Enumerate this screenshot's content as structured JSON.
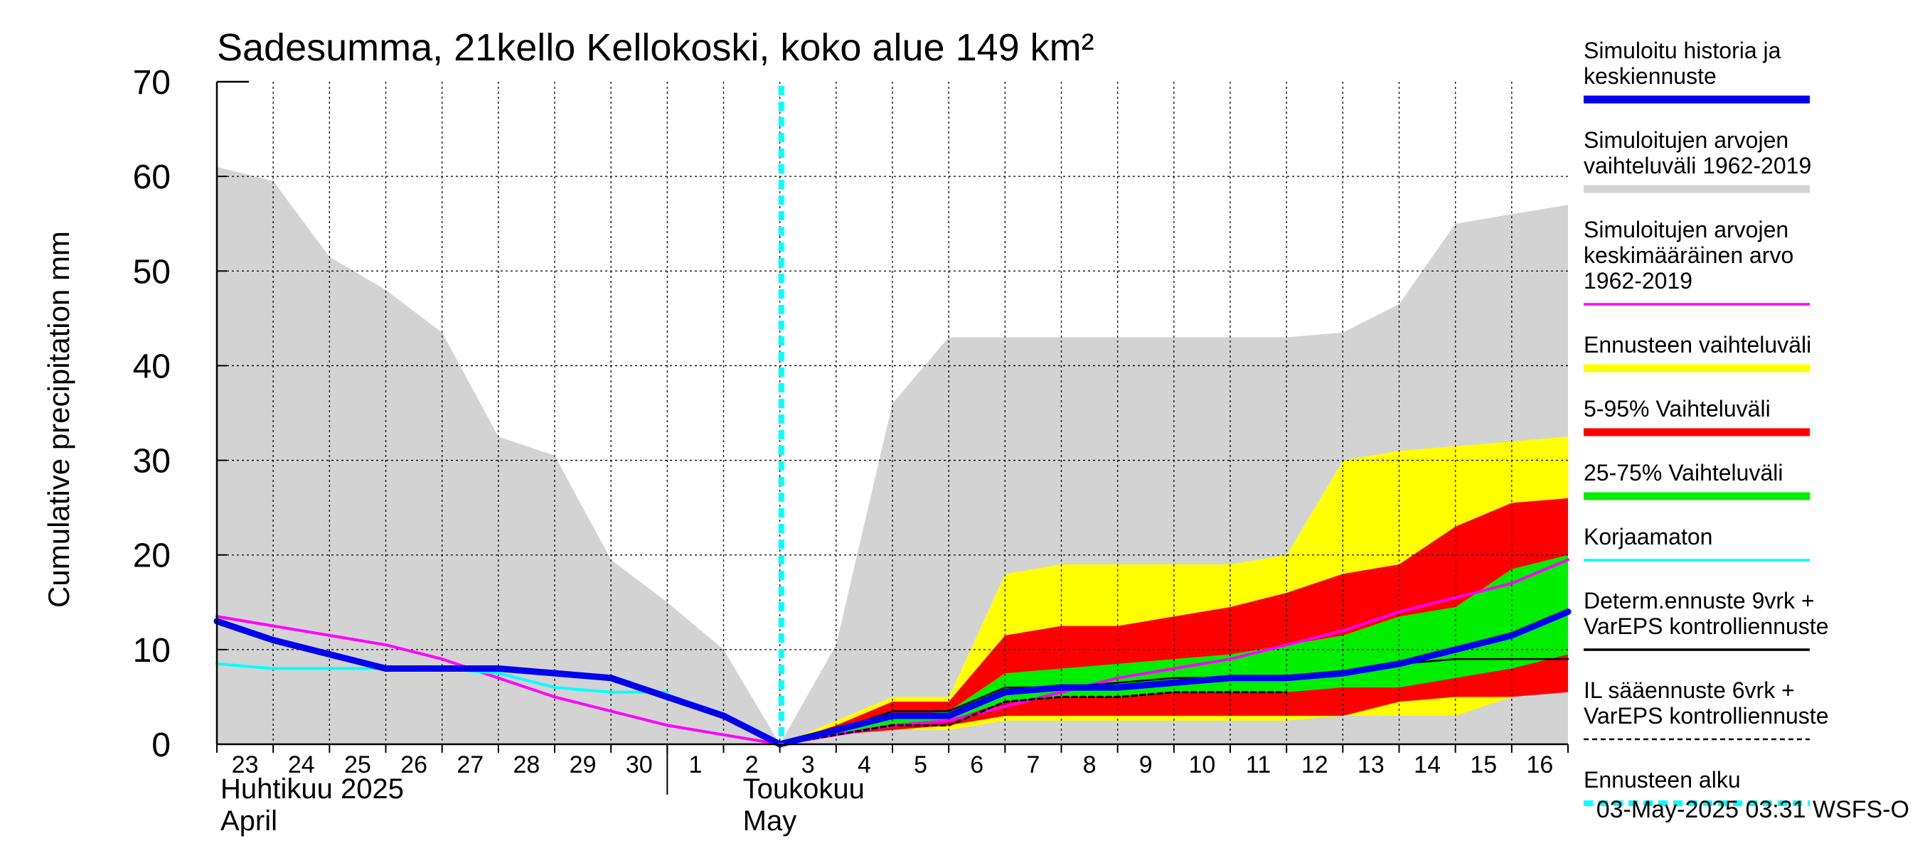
{
  "chart_data": {
    "type": "area",
    "title": "Sadesumma, 21kello Kellokoski, koko alue 149 km²",
    "ylabel": "Cumulative precipitation   mm",
    "ylim": [
      0,
      70
    ],
    "yticks": [
      0,
      10,
      20,
      30,
      40,
      50,
      60,
      70
    ],
    "grid": true,
    "legend_position": "right",
    "x_tick_labels": [
      "23",
      "24",
      "25",
      "26",
      "27",
      "28",
      "29",
      "30",
      "1",
      "2",
      "3",
      "4",
      "5",
      "6",
      "7",
      "8",
      "9",
      "10",
      "11",
      "12",
      "13",
      "14",
      "15",
      "16"
    ],
    "month_labels": [
      {
        "line1": "Huhtikuu  2025",
        "line2": "April"
      },
      {
        "line1": "Toukokuu",
        "line2": "May"
      }
    ],
    "forecast_start_index": 10,
    "series": [
      {
        "name": "Simuloitujen arvojen vaihteluväli 1962-2019",
        "color": "#d3d3d3",
        "upper": [
          61,
          59.5,
          51.5,
          48,
          43.5,
          32.5,
          30.5,
          19.5,
          15,
          10,
          0,
          10.5,
          36,
          43,
          43,
          43,
          43,
          43,
          43,
          43,
          43.5,
          46.5,
          55,
          56,
          57
        ],
        "lower": [
          0,
          0,
          0,
          0,
          0,
          0,
          0,
          0,
          0,
          0,
          0,
          0,
          0,
          0,
          0,
          0,
          0,
          0,
          0,
          0,
          0,
          0,
          0,
          0,
          0
        ]
      },
      {
        "name": "Ennusteen vaihteluväli",
        "color": "#ffff00",
        "upper": [
          null,
          null,
          null,
          null,
          null,
          null,
          null,
          null,
          null,
          null,
          0,
          2.5,
          5,
          5,
          18,
          19,
          19,
          19,
          19,
          20,
          30,
          31,
          31.5,
          32,
          32.5
        ],
        "lower": [
          null,
          null,
          null,
          null,
          null,
          null,
          null,
          null,
          null,
          null,
          0,
          1,
          1.5,
          1.5,
          2.5,
          2.5,
          2.5,
          2.5,
          2.5,
          2.5,
          3,
          3,
          3,
          5,
          5.5
        ]
      },
      {
        "name": "5-95% Vaihteluväli",
        "color": "#ff0000",
        "upper": [
          null,
          null,
          null,
          null,
          null,
          null,
          null,
          null,
          null,
          null,
          0,
          2,
          4.5,
          4.5,
          11.5,
          12.5,
          12.5,
          13.5,
          14.5,
          16,
          18,
          19,
          23,
          25.5,
          26
        ],
        "lower": [
          null,
          null,
          null,
          null,
          null,
          null,
          null,
          null,
          null,
          null,
          0,
          1,
          1.5,
          2,
          3,
          3,
          3,
          3,
          3,
          3,
          3,
          4.5,
          5,
          5,
          5.5
        ]
      },
      {
        "name": "25-75% Vaihteluväli",
        "color": "#00ee00",
        "upper": [
          null,
          null,
          null,
          null,
          null,
          null,
          null,
          null,
          null,
          null,
          0,
          1.5,
          3,
          3.5,
          7.5,
          8,
          8.5,
          9,
          9.5,
          10.5,
          11.5,
          13.5,
          14.5,
          18.5,
          20
        ],
        "lower": [
          null,
          null,
          null,
          null,
          null,
          null,
          null,
          null,
          null,
          null,
          0,
          1,
          2,
          2.5,
          4.5,
          5,
          5,
          5.5,
          5.5,
          5.5,
          6,
          6,
          7,
          8,
          9.5
        ]
      },
      {
        "name": "Simuloitujen arvojen keskimääräinen arvo 1962-2019",
        "color": "#ff00ff",
        "values": [
          13.5,
          12.5,
          11.5,
          10.5,
          9,
          7,
          5,
          3.5,
          2,
          1,
          0,
          1,
          2,
          2.5,
          4,
          5.5,
          7,
          8,
          9,
          10.5,
          12,
          14,
          15.5,
          17,
          19.5
        ]
      },
      {
        "name": "Korjaamaton",
        "color": "#00ffff",
        "values": [
          8.5,
          8,
          8,
          8,
          8,
          7.5,
          6,
          5.5,
          5.5,
          null,
          null,
          null,
          null,
          null,
          null,
          null,
          null,
          null,
          null,
          null,
          null,
          null,
          null,
          null,
          null
        ]
      },
      {
        "name": "Determ.ennuste 9vrk + VarEPS kontrolliennuste",
        "color": "#000000",
        "values": [
          null,
          null,
          null,
          null,
          null,
          null,
          null,
          null,
          null,
          null,
          0,
          1.5,
          3.5,
          3.5,
          6,
          6,
          6.5,
          7,
          7,
          7,
          7.5,
          8.5,
          9,
          9,
          9
        ]
      },
      {
        "name": "IL sääennuste 6vrk + VarEPS kontrolliennuste",
        "color": "#000000",
        "values": [
          null,
          null,
          null,
          null,
          null,
          null,
          null,
          null,
          null,
          null,
          0,
          1,
          2,
          2,
          4.5,
          5,
          5,
          5.5,
          5.5,
          5.5,
          null,
          null,
          null,
          null,
          null
        ]
      },
      {
        "name": "Simuloitu historia ja keskiennuste",
        "color": "#0000ee",
        "values": [
          13,
          11,
          9.5,
          8,
          8,
          8,
          7.5,
          7,
          5,
          3,
          0,
          1.5,
          3,
          3,
          5.5,
          6,
          6,
          6.5,
          7,
          7,
          7.5,
          8.5,
          10,
          11.5,
          14
        ]
      },
      {
        "name": "Ennusteen alku",
        "color": "#00ffff"
      }
    ]
  },
  "legend": {
    "items": [
      {
        "lines": [
          "Simuloitu historia ja",
          "keskiennuste"
        ],
        "color": "#0000ee",
        "style": "thick"
      },
      {
        "lines": [
          "Simuloitujen arvojen",
          "vaihteluväli 1962-2019"
        ],
        "color": "#d3d3d3",
        "style": "thick"
      },
      {
        "lines": [
          "Simuloitujen arvojen",
          "keskimääräinen arvo",
          "   1962-2019"
        ],
        "color": "#ff00ff",
        "style": "thin"
      },
      {
        "lines": [
          "Ennusteen vaihteluväli"
        ],
        "color": "#ffff00",
        "style": "thick"
      },
      {
        "lines": [
          "5-95% Vaihteluväli"
        ],
        "color": "#ff0000",
        "style": "thick"
      },
      {
        "lines": [
          "25-75% Vaihteluväli"
        ],
        "color": "#00ee00",
        "style": "thick"
      },
      {
        "lines": [
          "Korjaamaton"
        ],
        "color": "#00ffff",
        "style": "thin"
      },
      {
        "lines": [
          "Determ.ennuste 9vrk +",
          "VarEPS kontrolliennuste"
        ],
        "color": "#000000",
        "style": "thin"
      },
      {
        "lines": [
          "IL sääennuste 6vrk  +",
          "  VarEPS kontrolliennuste"
        ],
        "color": "#000000",
        "style": "dashed"
      },
      {
        "lines": [
          "Ennusteen alku"
        ],
        "color": "#00ffff",
        "style": "dotted"
      }
    ]
  },
  "footer": "03-May-2025 03:31 WSFS-O"
}
